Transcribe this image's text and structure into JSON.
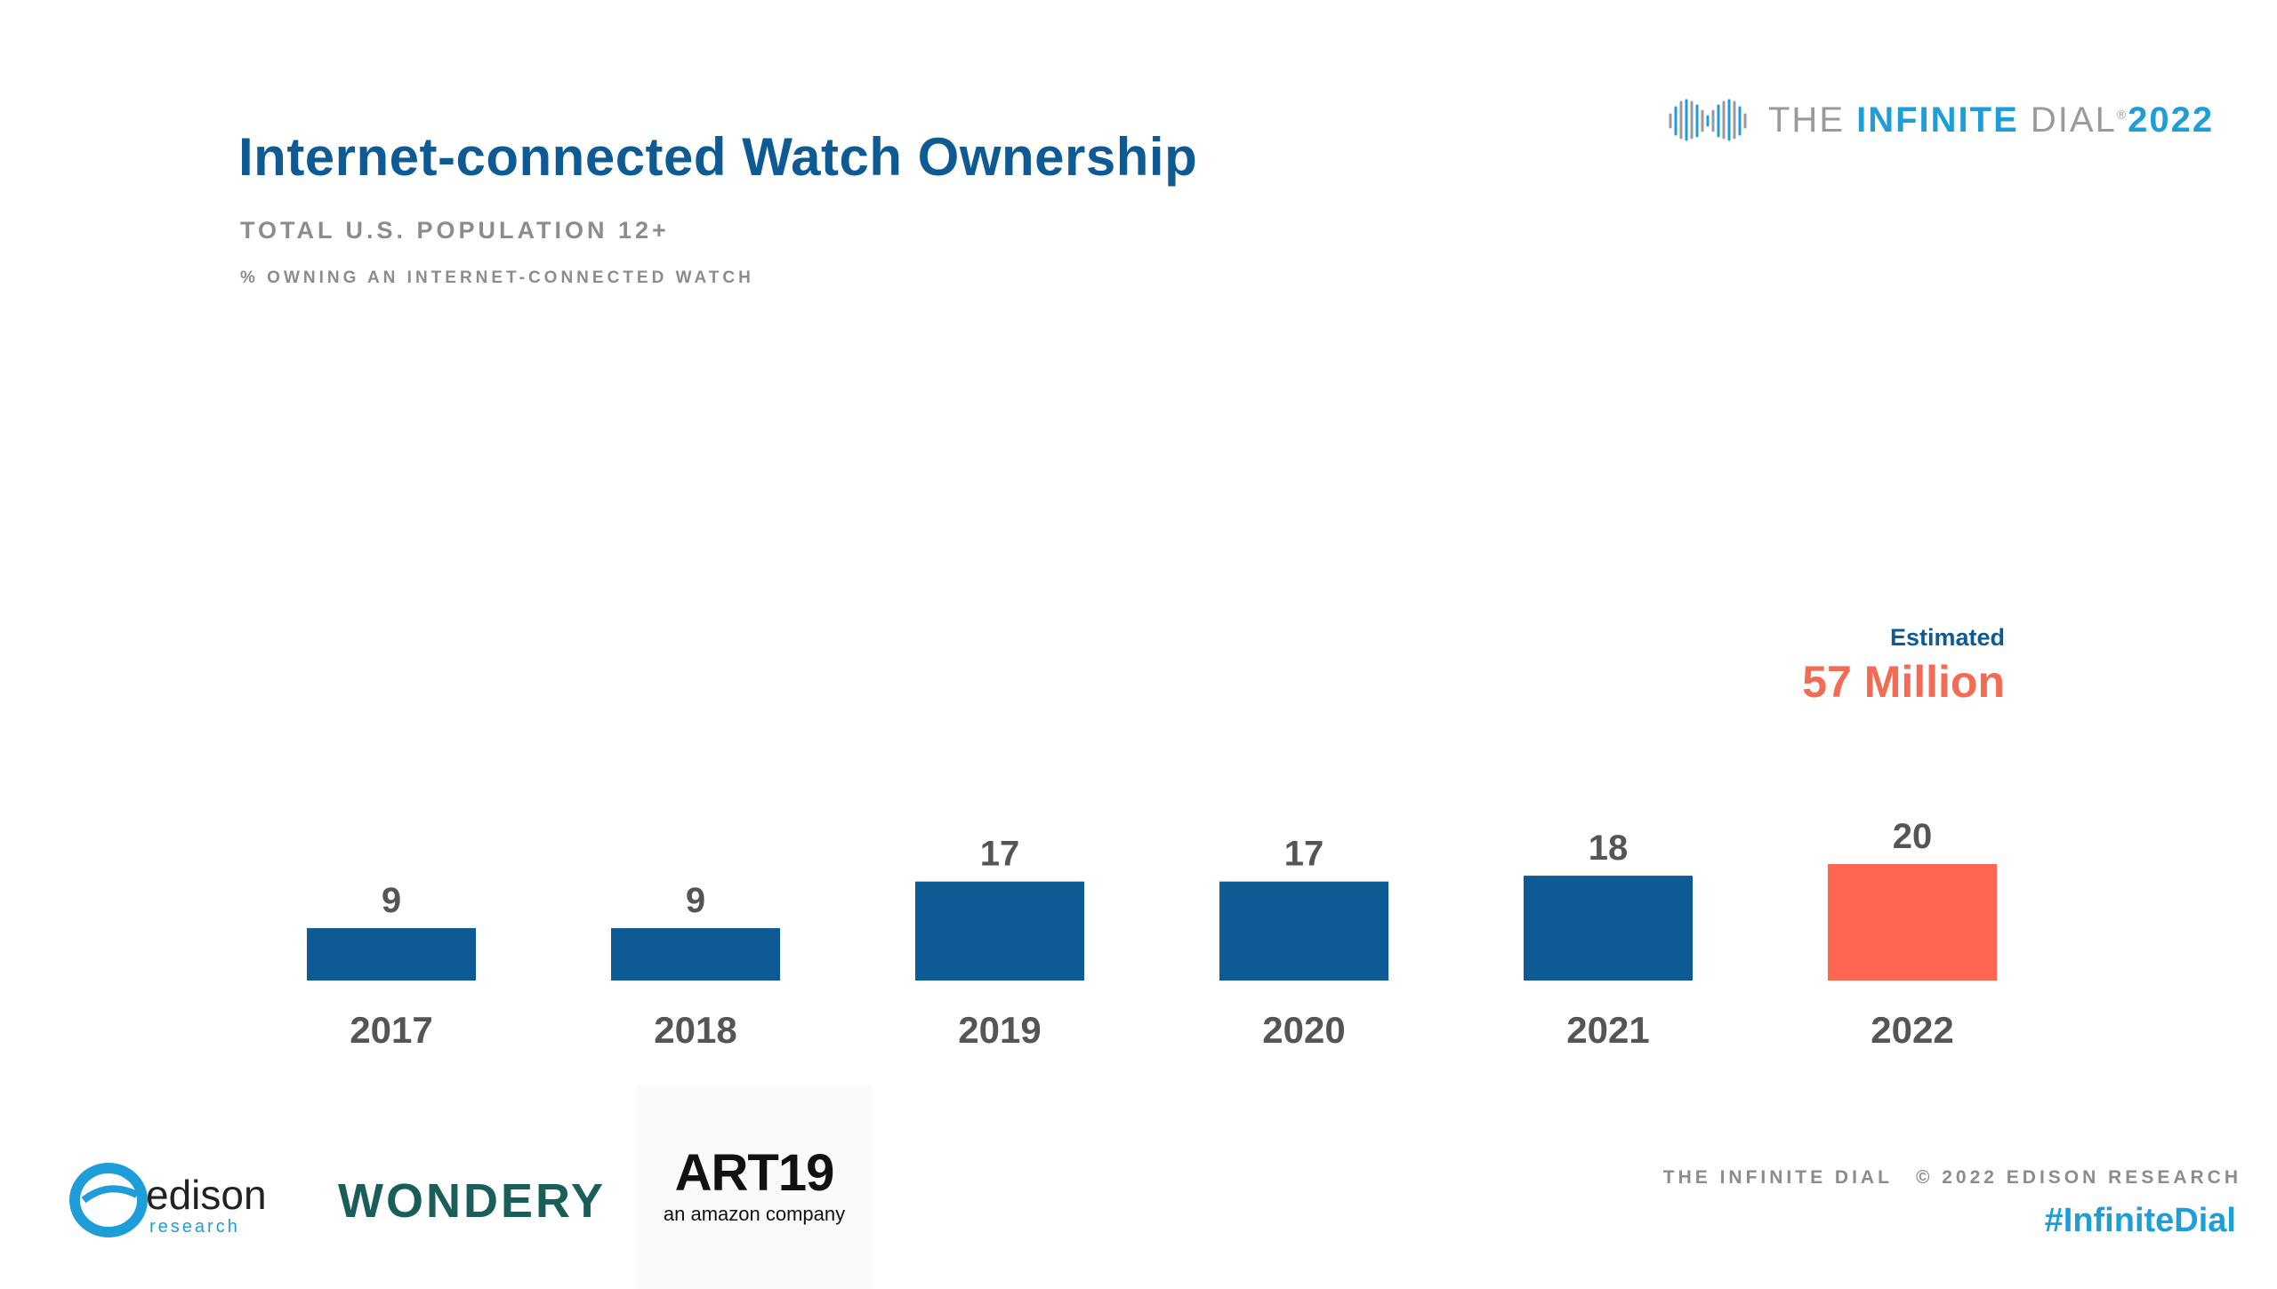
{
  "header": {
    "title": "Internet-connected Watch Ownership",
    "subtitle": "TOTAL U.S. POPULATION 12+",
    "measure": "% OWNING AN INTERNET-CONNECTED WATCH"
  },
  "brand": {
    "prefix": "THE ",
    "accent": "INFINITE",
    "suffix": " DIAL",
    "mark": "®",
    "year": "2022"
  },
  "estimate": {
    "label": "Estimated",
    "value": "57 Million"
  },
  "chart_data": {
    "type": "bar",
    "title": "Internet-connected Watch Ownership",
    "xlabel": "",
    "ylabel": "% owning an internet-connected watch",
    "categories": [
      "2017",
      "2018",
      "2019",
      "2020",
      "2021",
      "2022"
    ],
    "values": [
      9,
      9,
      17,
      17,
      18,
      20
    ],
    "ylim": [
      0,
      20
    ],
    "grid": false,
    "legend": "none",
    "colors": {
      "default": "#0e5a94",
      "highlight": "#fe6651",
      "value_label": "#555555",
      "category_label": "#555555"
    },
    "highlight_index": 5
  },
  "logos": {
    "edison_main": "edison",
    "edison_sub": "research",
    "wondery": "WONDERY",
    "art19_main": "ART19",
    "art19_sub": "an amazon company"
  },
  "footer": {
    "left": "THE INFINITE DIAL",
    "right": "© 2022 EDISON RESEARCH",
    "hashtag": "#InfiniteDial"
  }
}
